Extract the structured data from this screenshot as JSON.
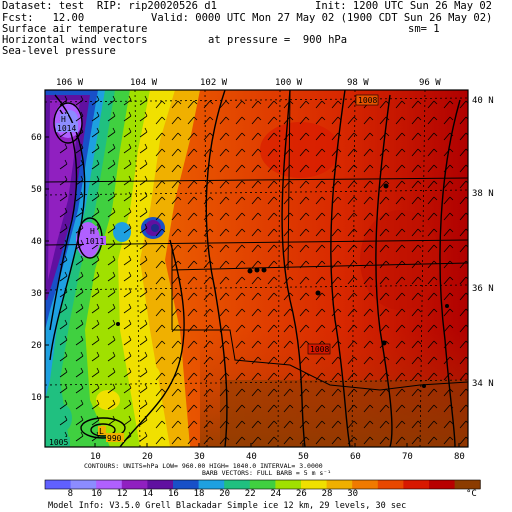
{
  "header": {
    "dataset": "Dataset: test  RIP: rip20020526 d1",
    "init": "Init: 1200 UTC Sun 26 May 02",
    "fcst": "Fcst:   12.00",
    "valid": "Valid: 0000 UTC Mon 27 May 02 (1900 CDT Sun 26 May 02)",
    "field1": "Surface air temperature",
    "sm": "sm= 1",
    "field2": "Horizontal wind vectors",
    "pressure": "at pressure =  900 hPa",
    "field3": "Sea-level pressure"
  },
  "map": {
    "lon_labels": [
      "106 W",
      "104 W",
      "102 W",
      "100 W",
      "98 W",
      "96 W"
    ],
    "lat_labels": [
      "40 N",
      "38 N",
      "36 N",
      "34 N"
    ],
    "grid_x_ticks": [
      "10",
      "20",
      "30",
      "40",
      "50",
      "60",
      "70",
      "80"
    ],
    "grid_y_ticks": [
      "10",
      "20",
      "30",
      "40",
      "50",
      "60"
    ],
    "pressure_labels": [
      "1008",
      "1008",
      "1005"
    ],
    "high_labels": [
      "H",
      "1014",
      "H",
      "1011"
    ],
    "low_labels": [
      "L",
      "990"
    ]
  },
  "footer": {
    "contours": "CONTOURS:  UNITS=hPa  LOW=  960.00       HIGH=  1040.0        INTERVAL=   3.0000",
    "barbs": "BARB VECTORS:  FULL BARB = 5 m s⁻¹",
    "colorbar": {
      "ticks": [
        "8",
        "10",
        "12",
        "14",
        "16",
        "18",
        "20",
        "22",
        "24",
        "26",
        "28",
        "30"
      ],
      "unit": "°C",
      "colors": [
        "#6060ff",
        "#8c8cff",
        "#b060ff",
        "#9020c0",
        "#6010a0",
        "#1850c8",
        "#1ea0e0",
        "#20c080",
        "#40d040",
        "#a0e000",
        "#f0e000",
        "#f0b000",
        "#f07a00",
        "#e84800",
        "#d81800",
        "#b80000",
        "#8c3c00"
      ]
    },
    "model_info": "Model Info: V3.5.0  Grell     Blackadar  Simple ice    12 km,  29 levels,  30 sec"
  }
}
